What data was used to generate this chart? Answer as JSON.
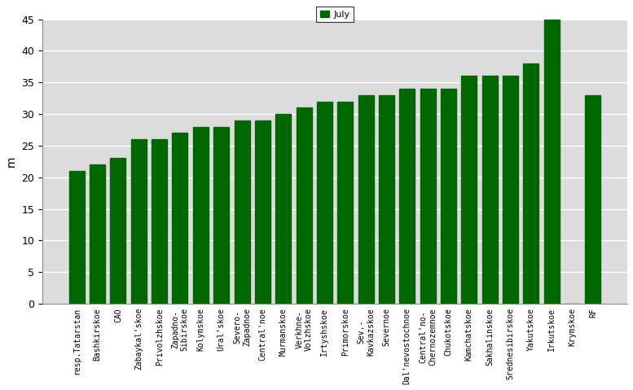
{
  "categories": [
    "resp.Tatarstan",
    "Bashkirskoe",
    "CAO",
    "Zabaykal'skoe",
    "Privolzhskoe",
    "Zapadno-",
    "Sibirskoe",
    "Kolymskoe",
    "Ural'skoe",
    "Severo-",
    "Zapadnoe",
    "Central'noe",
    "Murmanskoe",
    "Verkhne-",
    "Volzhskoe",
    "Irtyshskoe",
    "Primorskoe",
    "Sev.-",
    "Kavkazskoe",
    "Severnoe",
    "Dal'nevostochnoe",
    "Central'no-",
    "Chernozemnoe",
    "Chukotskoe",
    "Kamchatskoe",
    "Sakhalinskoe",
    "Srednesibirskoe",
    "Yakutskoe",
    "Irkutskoe",
    "Krymskoe",
    "RF"
  ],
  "values": [
    21,
    22,
    23,
    26,
    26,
    0,
    27,
    28,
    28,
    0,
    29,
    29,
    30,
    0,
    31,
    32,
    32,
    0,
    33,
    33,
    34,
    0,
    34,
    34,
    36,
    36,
    36,
    38,
    45,
    0,
    33
  ],
  "bar_color": "#006600",
  "ylabel": "m",
  "legend_label": "July",
  "ylim": [
    0,
    45
  ],
  "yticks": [
    0,
    5,
    10,
    15,
    20,
    25,
    30,
    35,
    40,
    45
  ],
  "plot_bg_color": "#dcdcdc",
  "fig_bg_color": "#ffffff",
  "grid_color": "#ffffff"
}
